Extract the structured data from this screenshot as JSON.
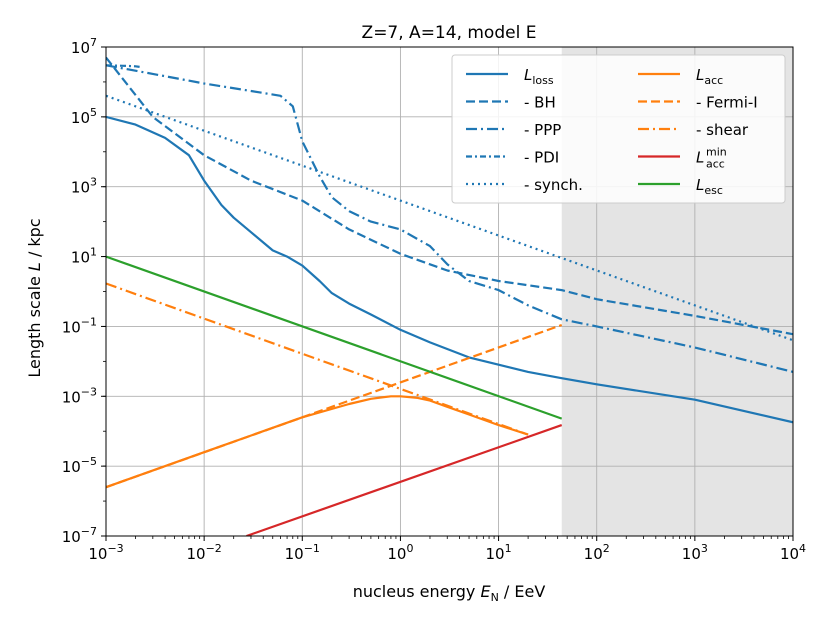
{
  "chart_data": {
    "type": "line",
    "title": "Z=7, A=14, model E",
    "xlabel_prefix": "nucleus energy ",
    "xlabel_var": "E",
    "xlabel_sub": "N",
    "xlabel_unit": " / EeV",
    "ylabel_prefix": "Length scale ",
    "ylabel_var": "L",
    "ylabel_unit": " / kpc",
    "x_scale": "log",
    "y_scale": "log",
    "xlim": [
      0.001,
      10000
    ],
    "ylim": [
      1e-07,
      10000000.0
    ],
    "grid": true,
    "legend_position": "upper right",
    "x_ticks": [
      {
        "value": 0.001,
        "base": "10",
        "exp": "−3"
      },
      {
        "value": 0.01,
        "base": "10",
        "exp": "−2"
      },
      {
        "value": 0.1,
        "base": "10",
        "exp": "−1"
      },
      {
        "value": 1,
        "base": "10",
        "exp": "0"
      },
      {
        "value": 10,
        "base": "10",
        "exp": "1"
      },
      {
        "value": 100,
        "base": "10",
        "exp": "2"
      },
      {
        "value": 1000,
        "base": "10",
        "exp": "3"
      },
      {
        "value": 10000,
        "base": "10",
        "exp": "4"
      }
    ],
    "y_ticks": [
      {
        "value": 1e-07,
        "base": "10",
        "exp": "−7"
      },
      {
        "value": 1e-05,
        "base": "10",
        "exp": "−5"
      },
      {
        "value": 0.001,
        "base": "10",
        "exp": "−3"
      },
      {
        "value": 0.1,
        "base": "10",
        "exp": "−1"
      },
      {
        "value": 10,
        "base": "10",
        "exp": "1"
      },
      {
        "value": 1000,
        "base": "10",
        "exp": "3"
      },
      {
        "value": 100000,
        "base": "10",
        "exp": "5"
      },
      {
        "value": 10000000,
        "base": "10",
        "exp": "7"
      }
    ],
    "shaded_region": {
      "x_from": 44,
      "x_to": 10000,
      "color": "#e4e4e4"
    },
    "series": [
      {
        "key": "loss",
        "legend_main": "L",
        "legend_sub": "loss",
        "color": "#1f77b4",
        "style": "solid",
        "x": [
          0.001,
          0.002,
          0.004,
          0.007,
          0.01,
          0.015,
          0.02,
          0.03,
          0.05,
          0.07,
          0.1,
          0.15,
          0.2,
          0.3,
          0.5,
          1,
          2,
          5,
          10,
          20,
          44,
          100,
          1000,
          10000
        ],
        "y": [
          100000,
          60000,
          25000,
          8000,
          1500,
          300,
          130,
          50,
          15,
          10,
          5.5,
          2,
          0.9,
          0.45,
          0.22,
          0.08,
          0.035,
          0.013,
          0.008,
          0.005,
          0.0033,
          0.0022,
          0.0008,
          0.00018
        ]
      },
      {
        "key": "bh",
        "legend_main": "- BH",
        "legend_sub": "",
        "color": "#1f77b4",
        "style": "dashed",
        "x": [
          0.001,
          0.003,
          0.01,
          0.03,
          0.1,
          0.3,
          1,
          3,
          10,
          44,
          100,
          1000,
          10000
        ],
        "y": [
          5000000,
          100000,
          8000,
          1500,
          400,
          60,
          12,
          4,
          2,
          1.1,
          0.6,
          0.2,
          0.06
        ]
      },
      {
        "key": "ppp",
        "legend_main": "- PPP",
        "legend_sub": "",
        "color": "#1f77b4",
        "style": "dashdot",
        "x": [
          0.001,
          0.003,
          0.01,
          0.03,
          0.06,
          0.08,
          0.1,
          0.15,
          0.2,
          0.3,
          0.5,
          1,
          2,
          3,
          5,
          10,
          20,
          44,
          100,
          1000,
          10000
        ],
        "y": [
          3000000,
          1700000,
          900000,
          550000,
          400000,
          200000,
          20000,
          2000,
          500,
          200,
          100,
          60,
          20,
          6,
          2,
          1.1,
          0.4,
          0.16,
          0.1,
          0.025,
          0.005
        ]
      },
      {
        "key": "pdi",
        "legend_main": "- PDI",
        "legend_sub": "",
        "color": "#1f77b4",
        "style": "pdi",
        "x": [
          0.001,
          0.0015,
          0.002,
          0.0022
        ],
        "y": [
          3000000,
          2900000,
          2800000,
          2700000
        ]
      },
      {
        "key": "synch",
        "legend_main": "- synch.",
        "legend_sub": "",
        "color": "#1f77b4",
        "style": "dotted",
        "x": [
          0.001,
          10000
        ],
        "y": [
          400000,
          0.04
        ]
      },
      {
        "key": "acc",
        "legend_main": "L",
        "legend_sub": "acc",
        "color": "#ff7f0e",
        "style": "solid",
        "x": [
          0.001,
          0.01,
          0.1,
          0.3,
          0.5,
          0.8,
          1,
          1.5,
          2,
          3,
          5,
          10,
          20
        ],
        "y": [
          2.5e-06,
          2.5e-05,
          0.00025,
          0.0006,
          0.00085,
          0.001,
          0.001,
          0.0009,
          0.00075,
          0.0005,
          0.0003,
          0.00015,
          8e-05
        ]
      },
      {
        "key": "fermi",
        "legend_main": "- Fermi-I",
        "legend_sub": "",
        "color": "#ff7f0e",
        "style": "dashed",
        "x": [
          0.001,
          44
        ],
        "y": [
          2.5e-06,
          0.11
        ]
      },
      {
        "key": "shear",
        "legend_main": "- shear",
        "legend_sub": "",
        "color": "#ff7f0e",
        "style": "dashdot",
        "x": [
          0.001,
          20
        ],
        "y": [
          1.7,
          8e-05
        ]
      },
      {
        "key": "accmin",
        "legend_main": "L",
        "legend_sub": "acc",
        "legend_sup": "min",
        "color": "#d62728",
        "style": "solid",
        "x": [
          0.027,
          44
        ],
        "y": [
          1e-07,
          0.00015
        ]
      },
      {
        "key": "esc",
        "legend_main": "L",
        "legend_sub": "esc",
        "color": "#2ca02c",
        "style": "solid",
        "x": [
          0.001,
          44
        ],
        "y": [
          10,
          0.00023
        ]
      }
    ]
  }
}
